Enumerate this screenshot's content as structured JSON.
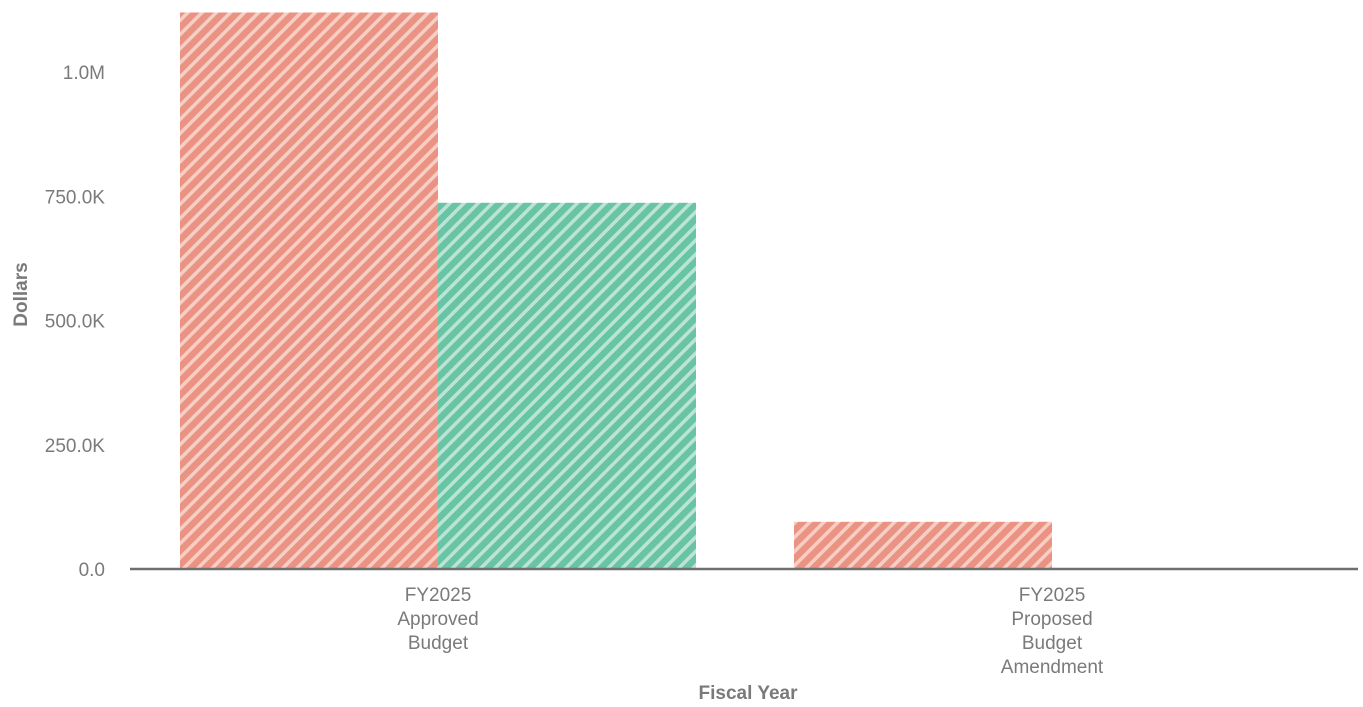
{
  "chart_data": {
    "type": "bar",
    "title": "",
    "xlabel": "Fiscal Year",
    "ylabel": "Dollars",
    "categories": [
      [
        "FY2025",
        "Approved",
        "Budget"
      ],
      [
        "FY2025",
        "Proposed",
        "Budget",
        "Amendment"
      ]
    ],
    "series": [
      {
        "color": "#e8806c",
        "values": [
          1120000,
          95000
        ]
      },
      {
        "color": "#4fba94",
        "values": [
          737000,
          0
        ]
      }
    ],
    "ylim": [
      0,
      1125000
    ],
    "yticks": [
      0,
      250000,
      500000,
      750000,
      1000000
    ],
    "ytick_labels": [
      "0.0",
      "250.0K",
      "500.0K",
      "750.0K",
      "1.0M"
    ],
    "grid": false,
    "legend": "none",
    "bar_pattern": "diagonal-hatch"
  }
}
